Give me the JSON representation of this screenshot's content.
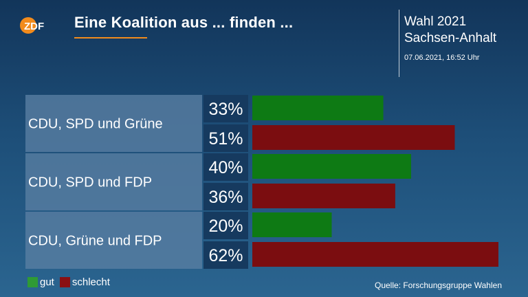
{
  "header": {
    "logo_text": "ZDF",
    "title": "Eine Koalition aus ... finden ...",
    "election_line1": "Wahl 2021",
    "election_line2": "Sachsen-Anhalt",
    "timestamp": "07.06.2021, 16:52 Uhr"
  },
  "colors": {
    "gut": "#0e7a14",
    "schlecht": "#7b0d10",
    "accent": "#f28b1c"
  },
  "chart_data": {
    "type": "bar",
    "orientation": "horizontal",
    "categories": [
      "CDU, SPD und Grüne",
      "CDU, SPD und FDP",
      "CDU, Grüne und FDP"
    ],
    "series": [
      {
        "name": "gut",
        "values": [
          33,
          40,
          20
        ],
        "labels": [
          "33%",
          "40%",
          "20%"
        ]
      },
      {
        "name": "schlecht",
        "values": [
          51,
          36,
          62
        ],
        "labels": [
          "51%",
          "36%",
          "62%"
        ]
      }
    ],
    "unit": "%",
    "xlim": [
      0,
      62
    ],
    "grid": false,
    "legend_position": "bottom-left"
  },
  "legend": {
    "gut": "gut",
    "schlecht": "schlecht"
  },
  "footer": {
    "source": "Quelle: Forschungsgruppe Wahlen"
  }
}
